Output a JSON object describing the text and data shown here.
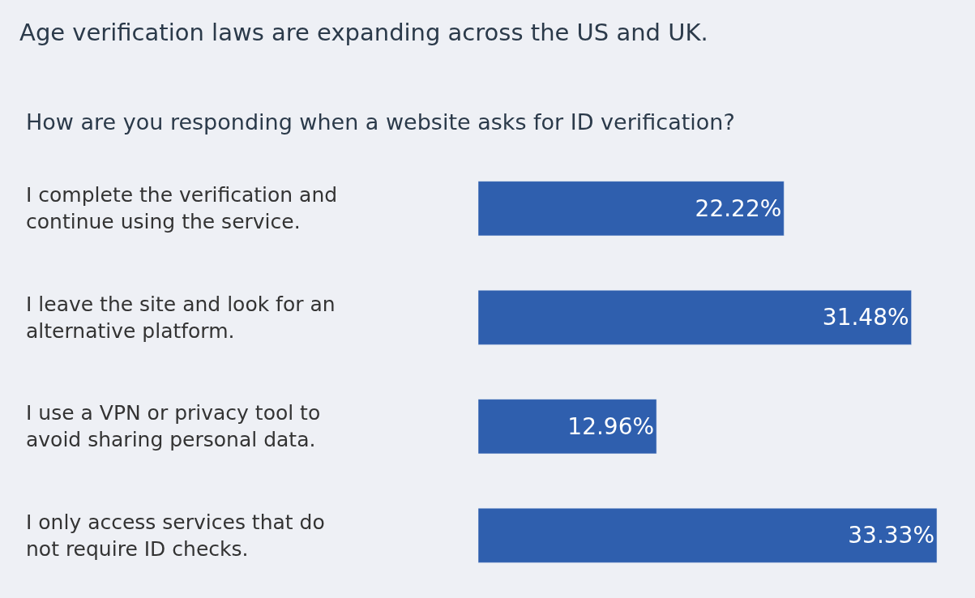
{
  "chart_data": {
    "type": "bar",
    "orientation": "horizontal",
    "title": "Age verification laws are expanding across the US and UK.",
    "subtitle": "How are you responding when a website asks for ID verification?",
    "categories": [
      "I complete the verification and continue using the service.",
      "I leave the site and look for an alternative platform.",
      "I use a VPN or privacy tool to avoid sharing personal data.",
      "I only access services that do not require ID checks."
    ],
    "values": [
      22.22,
      31.48,
      12.96,
      33.33
    ],
    "value_labels": [
      "22.22%",
      "31.48%",
      "12.96%",
      "33.33%"
    ],
    "color": "#2f5fae",
    "grid": false,
    "legend": false
  }
}
